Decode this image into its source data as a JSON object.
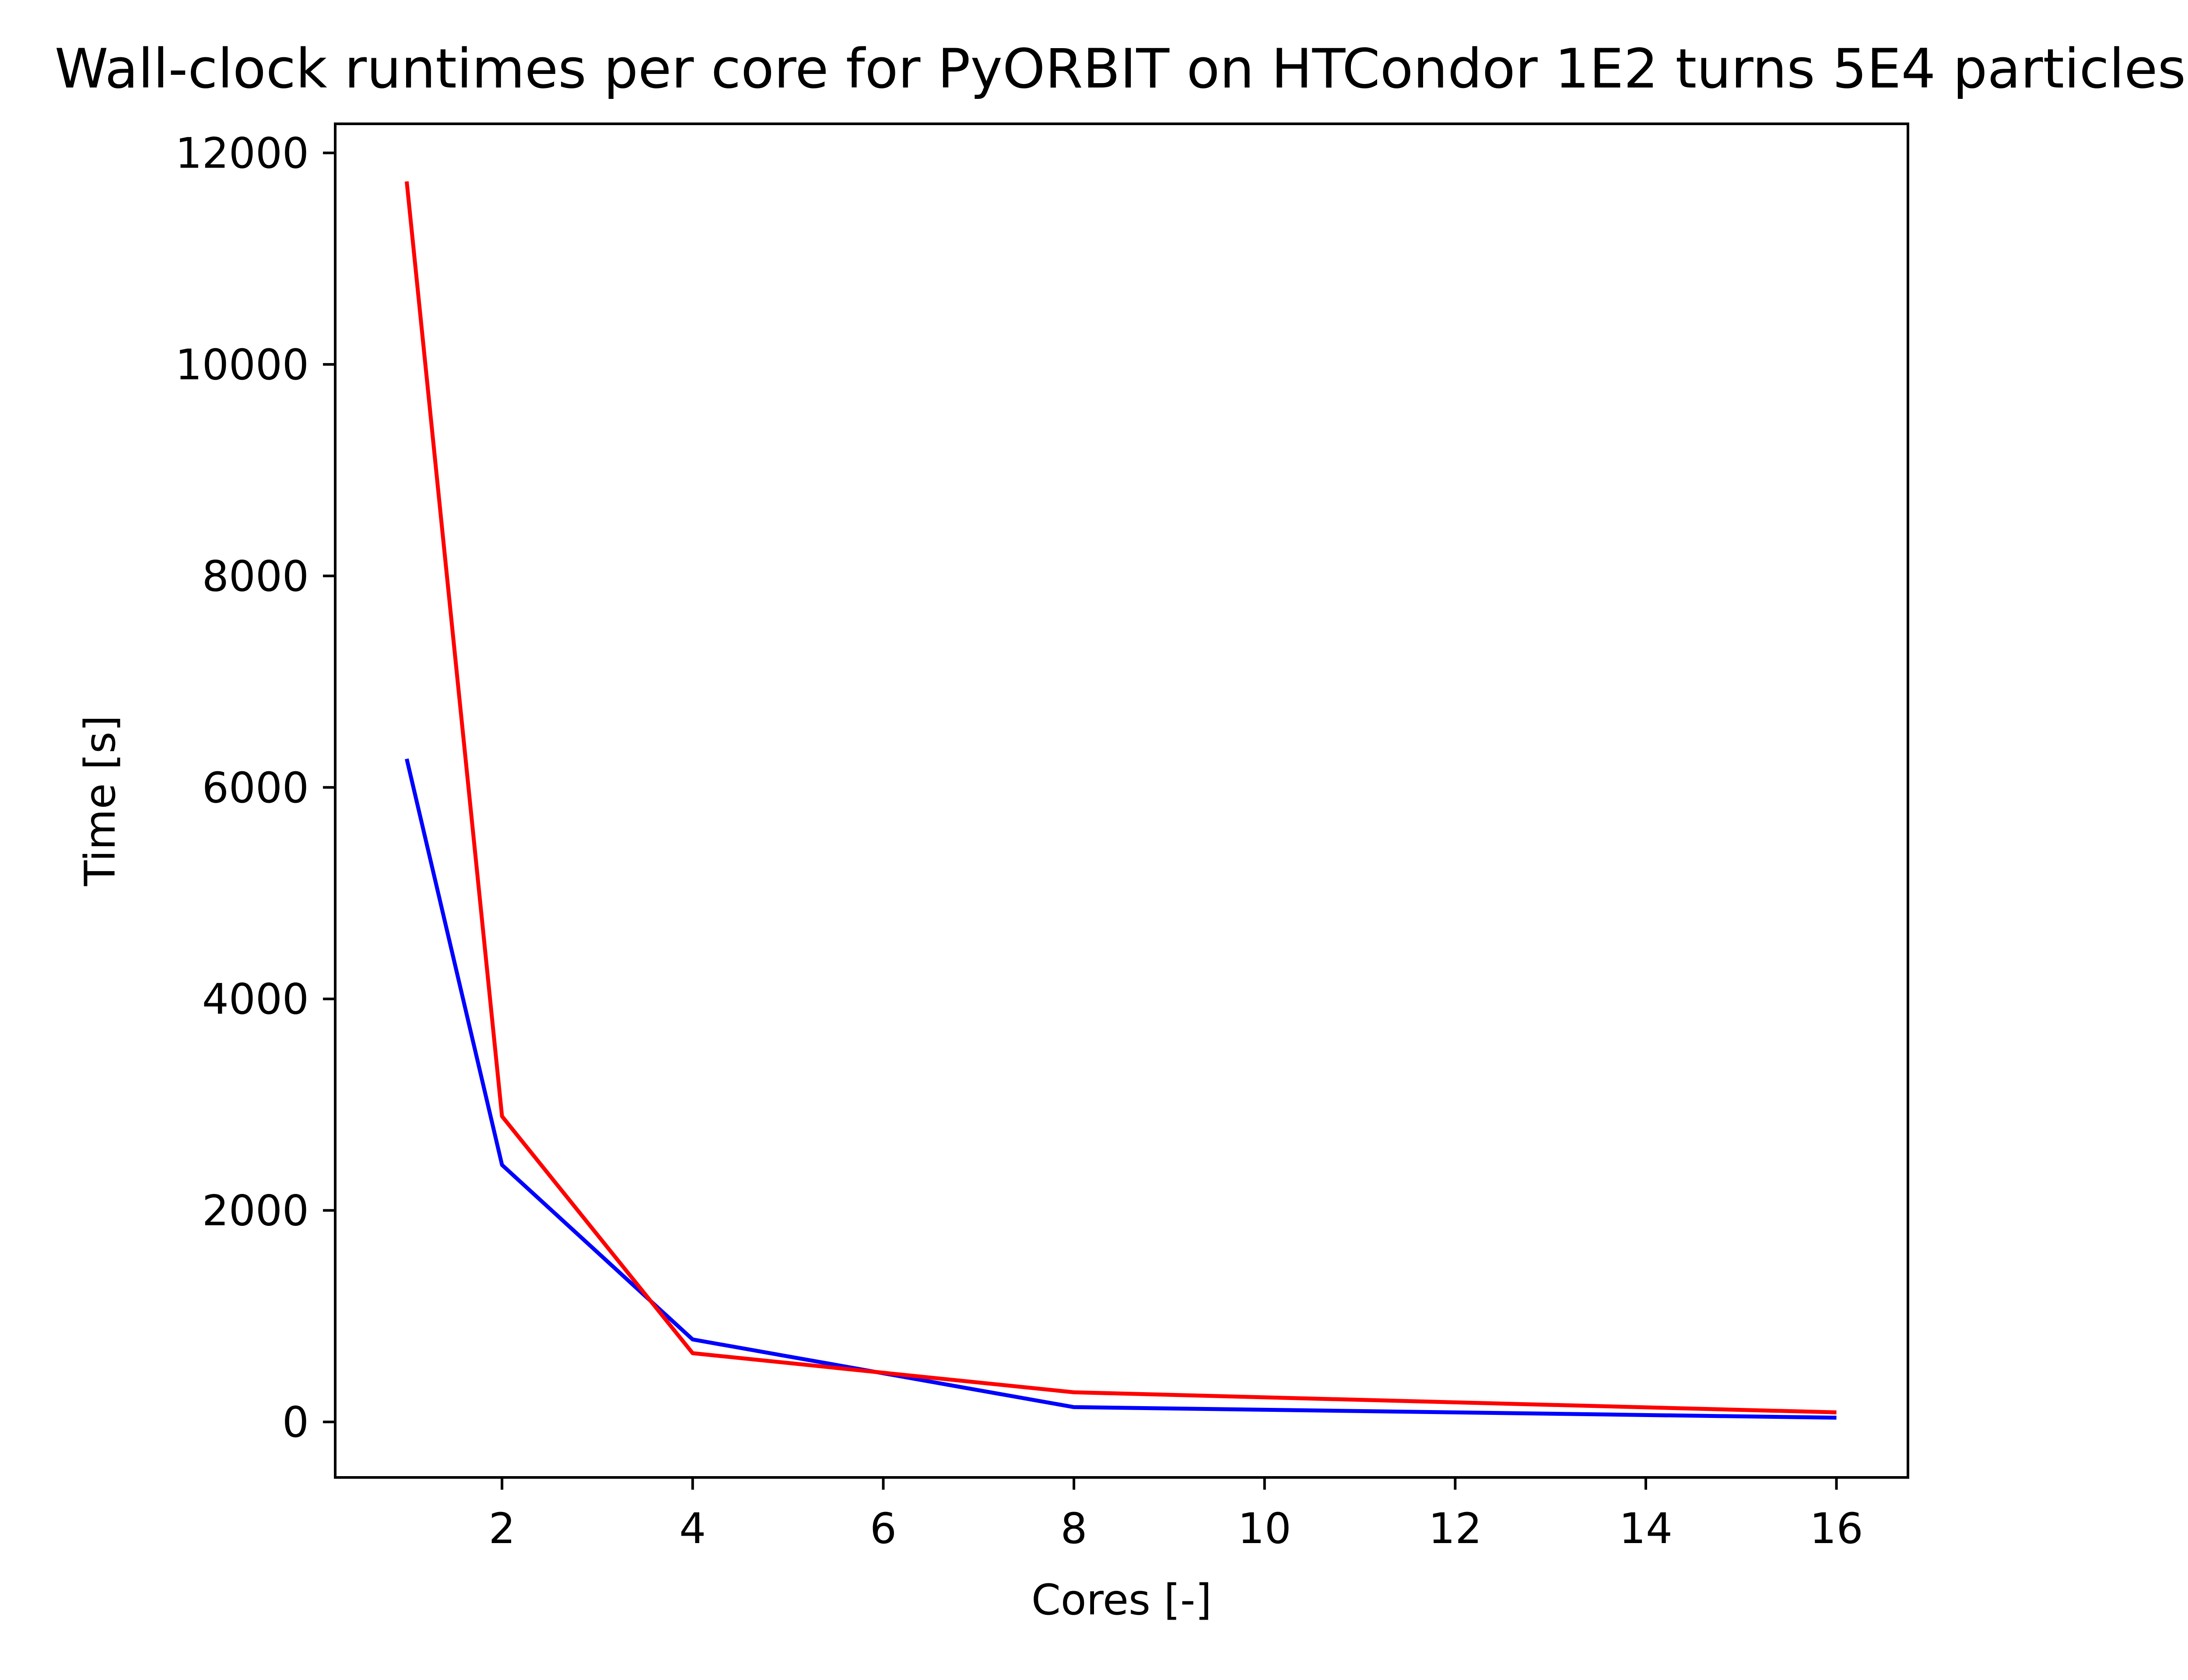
{
  "chart_data": {
    "type": "line",
    "title": "Wall-clock runtimes per core for PyORBIT on HTCondor 1E2 turns 5E4 particles",
    "xlabel": "Cores [-]",
    "ylabel": "Time [s]",
    "xlim": [
      0.25,
      16.75
    ],
    "ylim": [
      -525,
      12275
    ],
    "xticks": [
      2,
      4,
      6,
      8,
      10,
      12,
      14,
      16
    ],
    "yticks": [
      0,
      2000,
      4000,
      6000,
      8000,
      10000,
      12000
    ],
    "xtick_labels": [
      "2",
      "4",
      "6",
      "8",
      "10",
      "12",
      "14",
      "16"
    ],
    "ytick_labels": [
      "0",
      "2000",
      "4000",
      "6000",
      "8000",
      "10000",
      "12000"
    ],
    "grid": false,
    "legend": "none",
    "series": [
      {
        "color": "#0000ff",
        "x": [
          1,
          2,
          4,
          8,
          16
        ],
        "y": [
          6270,
          2430,
          780,
          140,
          40
        ]
      },
      {
        "color": "#ff0000",
        "x": [
          1,
          2,
          4,
          8,
          16
        ],
        "y": [
          11730,
          2890,
          650,
          280,
          90
        ]
      }
    ]
  }
}
